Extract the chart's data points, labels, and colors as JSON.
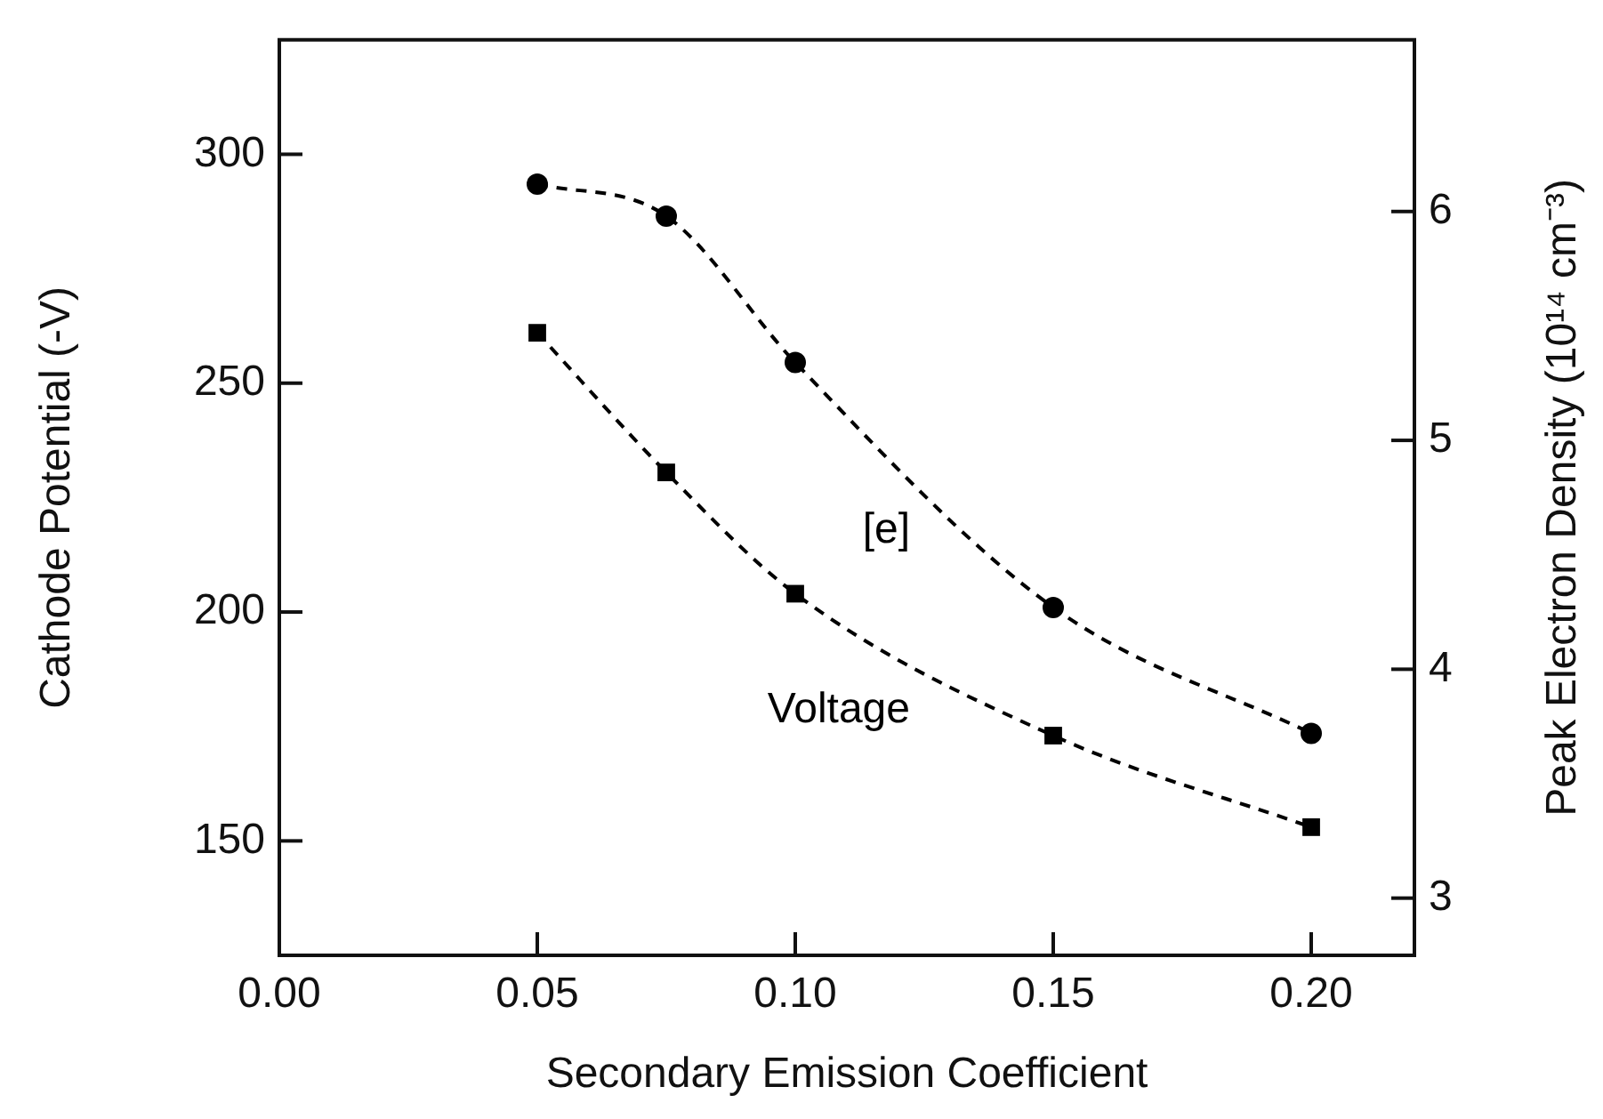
{
  "chart_data": {
    "type": "line",
    "xlabel": "Secondary Emission Coefficient",
    "ylabel": "Cathode Potential (-V)",
    "y2label": "Peak Electron Density (10¹⁴ cm⁻³)",
    "x": [
      0.05,
      0.075,
      0.1,
      0.15,
      0.2
    ],
    "series": [
      {
        "name": "[e]",
        "color": "#000000",
        "axis": "y2",
        "marker": "circle",
        "values": [
          6.12,
          5.98,
          5.34,
          4.27,
          3.72
        ]
      },
      {
        "name": "Voltage",
        "color": "#000000",
        "axis": "y",
        "marker": "square",
        "values": [
          261,
          230.5,
          204,
          173,
          153
        ]
      }
    ],
    "xlim": [
      0,
      0.22
    ],
    "xticks": [
      {
        "value": 0,
        "label": "0.00"
      },
      {
        "value": 0.05,
        "label": "0.05"
      },
      {
        "value": 0.1,
        "label": "0.10"
      },
      {
        "value": 0.15,
        "label": "0.15"
      },
      {
        "value": 0.2,
        "label": "0.20"
      }
    ],
    "ylim": [
      125,
      325
    ],
    "yticks": [
      150,
      200,
      250,
      300
    ],
    "y2lim": [
      2.75,
      6.75
    ],
    "y2ticks": [
      3,
      4,
      5,
      6
    ],
    "line_style": "dashed",
    "grid": false,
    "legend": false
  }
}
